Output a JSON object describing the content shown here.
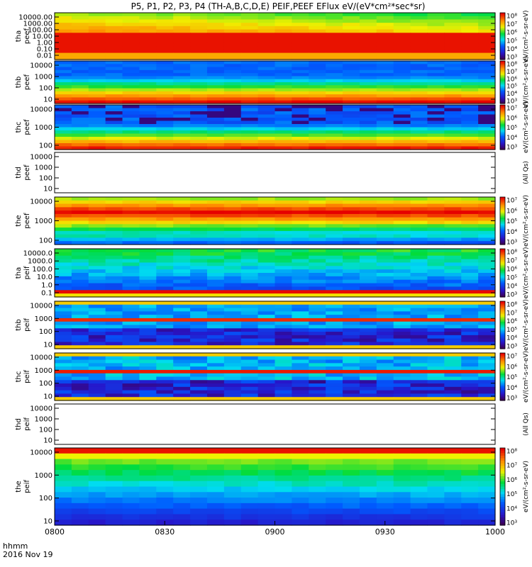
{
  "chart_data": {
    "type": "heatmap",
    "title": "P5, P1, P2, P3, P4 (TH-A,B,C,D,E) PEIF,PEEF EFlux eV/(eV*cm²*sec*sr)",
    "x_ticks": [
      "0800",
      "0830",
      "0900",
      "0930",
      "1000"
    ],
    "x_range": [
      "0800",
      "1000"
    ],
    "x_axis_labels": [
      "hhmm",
      "2016 Nov 19"
    ],
    "colormap": "rainbow (purple-blue-cyan-green-yellow-red)",
    "panels": [
      {
        "label": [
          "tha",
          "peef"
        ],
        "y_ticks": [
          "10000.00",
          "1000.00",
          "100.00",
          "10.00",
          "1.00",
          "0.10",
          "0.01"
        ],
        "log_scale": true,
        "colorbar_ticks": [
          "10⁸",
          "10⁷",
          "10⁶",
          "10⁵",
          "10⁴",
          "10³"
        ],
        "colorbar_label": "eV/(cm²-s-sr-eV)",
        "has_data": true,
        "pattern": "red band at low energy (0.1-10 eV), yellow-orange above, green at top increasing toward later times"
      },
      {
        "label": [
          "thb",
          "peef"
        ],
        "y_ticks": [
          "10000",
          "1000",
          "100",
          "10"
        ],
        "log_scale": true,
        "colorbar_ticks": [
          "10⁸",
          "10⁷",
          "10⁶",
          "10⁵",
          "10⁴",
          "10³"
        ],
        "colorbar_label": "eV/(cm²-s-sr-eV)",
        "has_data": true,
        "pattern": "blue at high energy, cyan-green-yellow-red toward low energy"
      },
      {
        "label": [
          "thc",
          "peef"
        ],
        "y_ticks": [
          "10000",
          "1000",
          "100"
        ],
        "log_scale": true,
        "colorbar_ticks": [
          "10⁷",
          "10⁶",
          "10⁵",
          "10⁴",
          "10³"
        ],
        "colorbar_label": "eV/(cm²-s-sr-eV)",
        "has_data": true,
        "pattern": "dark blue blocks at high energy, gradient to red at low energy"
      },
      {
        "label": [
          "thd",
          "peef"
        ],
        "y_ticks": [
          "10000",
          "1000",
          "100",
          "10"
        ],
        "log_scale": true,
        "colorbar_ticks": [],
        "colorbar_label": "(All Qs)",
        "has_data": false
      },
      {
        "label": [
          "the",
          "peef"
        ],
        "y_ticks": [
          "10000",
          "1000",
          "100"
        ],
        "log_scale": true,
        "colorbar_ticks": [
          "10⁷",
          "10⁶",
          "10⁵",
          "10⁴",
          "10³"
        ],
        "colorbar_label": "eV/(cm²-s-sr-eV)",
        "has_data": true,
        "pattern": "red core around 1000 eV, yellow-green edges, cyan at lowest energy"
      },
      {
        "label": [
          "tha",
          "peif"
        ],
        "y_ticks": [
          "10000.0",
          "1000.0",
          "100.0",
          "10.0",
          "1.0",
          "0.1"
        ],
        "log_scale": true,
        "colorbar_ticks": [
          "10⁸",
          "10⁷",
          "10⁶",
          "10⁵",
          "10⁴",
          "10³"
        ],
        "colorbar_label": "eV/(cm²-s-sr-eV)",
        "has_data": true,
        "pattern": "green at high energy fading to blue/purple blocks at low energy, yellow bands at bottom"
      },
      {
        "label": [
          "thb",
          "peif"
        ],
        "y_ticks": [
          "10000",
          "1000",
          "100",
          "10"
        ],
        "log_scale": true,
        "colorbar_ticks": [
          "10⁸",
          "10⁷",
          "10⁶",
          "10⁵",
          "10⁴",
          "10³"
        ],
        "colorbar_label": "eV/(cm²-s-sr-eV)",
        "has_data": true,
        "pattern": "blue/cyan blocks, red-yellow band near 300 eV, dark purple/black at low energy"
      },
      {
        "label": [
          "thc",
          "peif"
        ],
        "y_ticks": [
          "10000",
          "1000",
          "100",
          "10"
        ],
        "log_scale": true,
        "colorbar_ticks": [
          "10⁷",
          "10⁶",
          "10⁵",
          "10⁴",
          "10³"
        ],
        "colorbar_label": "eV/(cm²-s-sr-eV)",
        "has_data": true,
        "pattern": "blue/cyan blocks, red band near 300 eV, dark purple/black at low energy"
      },
      {
        "label": [
          "thd",
          "peif"
        ],
        "y_ticks": [
          "10000",
          "1000",
          "100",
          "10"
        ],
        "log_scale": true,
        "colorbar_ticks": [],
        "colorbar_label": "(All Qs)",
        "has_data": false
      },
      {
        "label": [
          "the",
          "peif"
        ],
        "y_ticks": [
          "10000",
          "1000",
          "100",
          "10"
        ],
        "log_scale": true,
        "colorbar_ticks": [
          "10⁸",
          "10⁷",
          "10⁶",
          "10⁵",
          "10⁴",
          "10³"
        ],
        "colorbar_label": "eV/(cm²-s-sr-eV)",
        "has_data": true,
        "pattern": "red stripe at top, yellow-green band, cyan-blue at low energy"
      }
    ]
  }
}
